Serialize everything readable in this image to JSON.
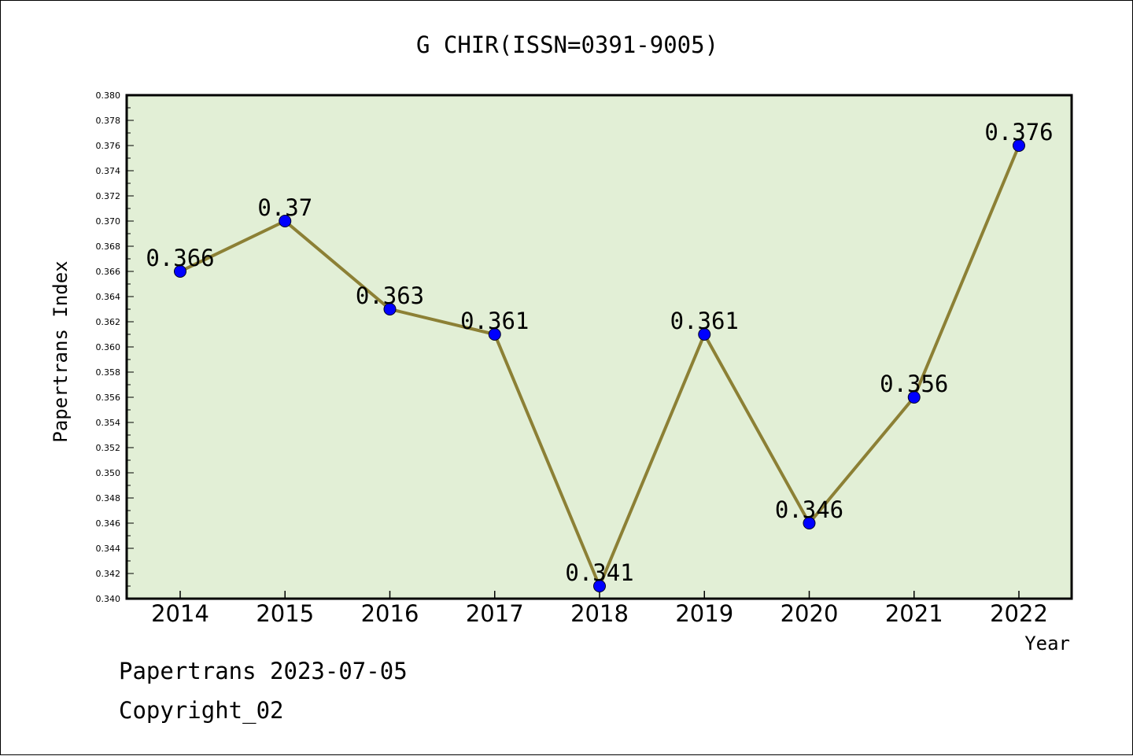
{
  "chart_data": {
    "type": "line",
    "title": "G CHIR(ISSN=0391-9005)",
    "xlabel": "Year",
    "ylabel": "Papertrans Index",
    "categories": [
      "2014",
      "2015",
      "2016",
      "2017",
      "2018",
      "2019",
      "2020",
      "2021",
      "2022"
    ],
    "series": [
      {
        "values": [
          0.366,
          0.37,
          0.363,
          0.361,
          0.341,
          0.361,
          0.346,
          0.356,
          0.376
        ],
        "labels": [
          "0.366",
          "0.37",
          "0.363",
          "0.361",
          "0.341",
          "0.361",
          "0.346",
          "0.356",
          "0.376"
        ]
      }
    ],
    "ylim": [
      0.34,
      0.38
    ],
    "ytick_step": 0.002,
    "yticks": [
      "0.340",
      "0.342",
      "0.344",
      "0.346",
      "0.348",
      "0.350",
      "0.352",
      "0.354",
      "0.356",
      "0.358",
      "0.360",
      "0.362",
      "0.364",
      "0.366",
      "0.368",
      "0.370",
      "0.372",
      "0.374",
      "0.376",
      "0.378",
      "0.380"
    ],
    "grid": false,
    "legend": "none",
    "colors": {
      "plot_background": "#e2efd6",
      "line": "#8c8035",
      "marker": "#0000ff"
    }
  },
  "footer": {
    "line1": "Papertrans 2023-07-05",
    "line2": "Copyright_02"
  }
}
